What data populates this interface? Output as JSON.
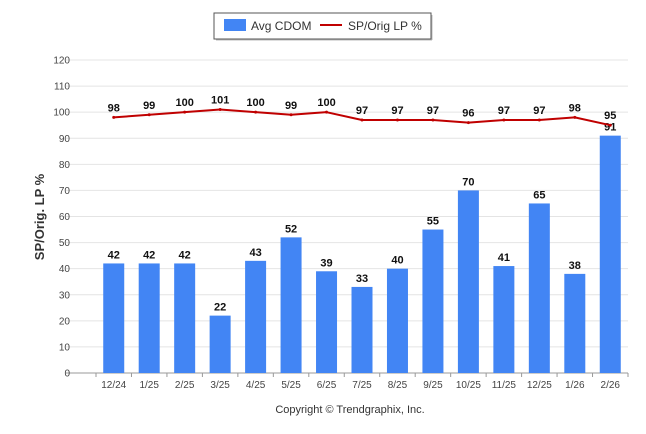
{
  "chart_data": {
    "type": "bar",
    "categories": [
      "12/24",
      "1/25",
      "2/25",
      "3/25",
      "4/25",
      "5/25",
      "6/25",
      "7/25",
      "8/25",
      "9/25",
      "10/25",
      "11/25",
      "12/25",
      "1/26",
      "2/26"
    ],
    "series": [
      {
        "name": "Avg CDOM",
        "type": "bar",
        "color": "#4285f4",
        "values": [
          42,
          42,
          42,
          22,
          43,
          52,
          39,
          33,
          40,
          55,
          70,
          41,
          65,
          38,
          91
        ]
      },
      {
        "name": "SP/Orig LP %",
        "type": "line",
        "color": "#c00000",
        "values": [
          98,
          99,
          100,
          101,
          100,
          99,
          100,
          97,
          97,
          97,
          96,
          97,
          97,
          98,
          95
        ]
      }
    ],
    "ylabel": "SP/Orig. LP %",
    "ylim": [
      0,
      120
    ],
    "yticks": [
      0,
      10,
      20,
      30,
      40,
      50,
      60,
      70,
      80,
      90,
      100,
      110,
      120
    ],
    "grid": true,
    "legend": "top-center"
  },
  "footer": {
    "copyright": "Copyright © Trendgraphix, Inc."
  }
}
